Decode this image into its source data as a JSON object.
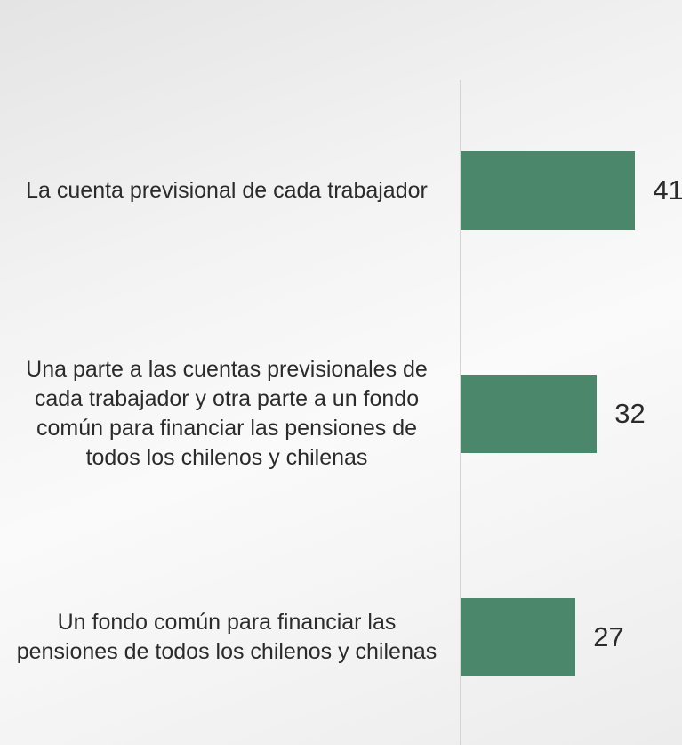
{
  "chart_data": {
    "type": "bar",
    "orientation": "horizontal",
    "categories": [
      "La cuenta previsional de cada trabajador",
      "Una parte a las cuentas previsionales de cada trabajador y otra parte a un fondo común para financiar las pensiones de todos los chilenos y chilenas",
      "Un fondo común para financiar las pensiones de todos los chilenos y chilenas"
    ],
    "values": [
      41,
      32,
      27
    ],
    "color": "#4a876b",
    "xlim": [
      0,
      52
    ]
  }
}
